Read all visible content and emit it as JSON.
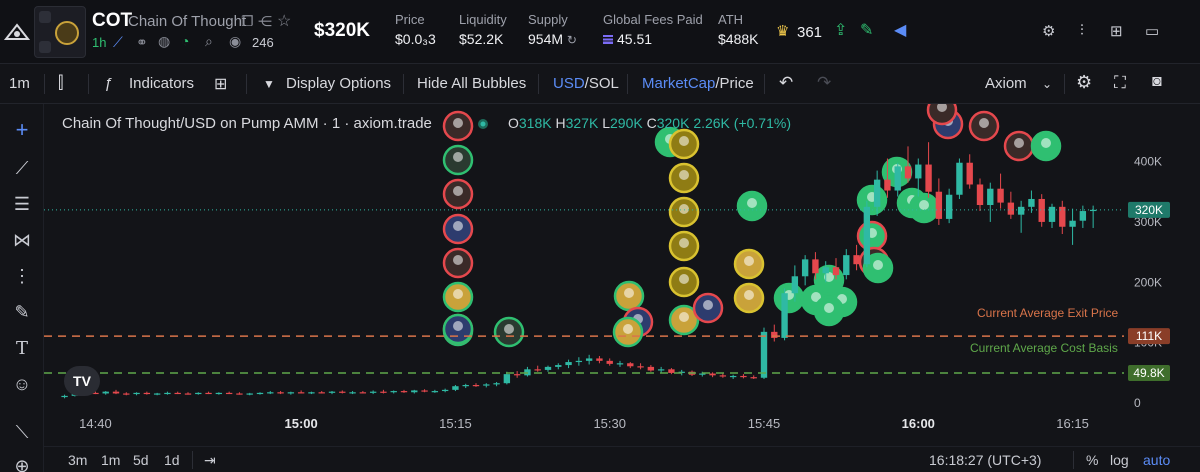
{
  "header": {
    "symbol": "COT",
    "name": "Chain Of Thought",
    "age": "1h",
    "holders_count": "246",
    "market_cap": "$320K",
    "stats": [
      {
        "label": "Price",
        "value": "$0.0₃3"
      },
      {
        "label": "Liquidity",
        "value": "$52.2K"
      },
      {
        "label": "Supply",
        "value": "954M"
      },
      {
        "label": "Global Fees Paid",
        "value": "45.51"
      },
      {
        "label": "ATH",
        "value": "$488K"
      }
    ],
    "crown_count": "361"
  },
  "toolbar": {
    "interval": "1m",
    "indicators": "Indicators",
    "display_options": "Display Options",
    "hide_bubbles": "Hide All Bubbles",
    "currency_a": "USD",
    "currency_b": "/SOL",
    "metric_a": "MarketCap",
    "metric_b": "/Price",
    "source": "Axiom"
  },
  "legend": {
    "title": "Chain Of Thought/USD on Pump AMM · 1 · axiom.trade",
    "o_label": "O",
    "o": "318K",
    "h_label": "H",
    "h": "327K",
    "l_label": "L",
    "l": "290K",
    "c_label": "C",
    "c": "320K",
    "change": "2.26K (+0.71%)"
  },
  "lines": {
    "exit_label": "Current Average Exit Price",
    "cost_label": "Current Average Cost Basis"
  },
  "bottom": {
    "ranges": [
      "3m",
      "1m",
      "5d",
      "1d"
    ],
    "clock": "16:18:27 (UTC+3)",
    "pct": "%",
    "log": "log",
    "auto": "auto"
  },
  "colors": {
    "up": "#2fb9a4",
    "down": "#e5484d",
    "exit_line": "#d9744a",
    "cost_line": "#5fa84a",
    "accent": "#5b8cf6"
  },
  "chart_data": {
    "type": "candlestick",
    "title": "Chain Of Thought/USD on Pump AMM · 1 · axiom.trade",
    "x_ticks": [
      "14:40",
      "15:00",
      "15:15",
      "15:30",
      "15:45",
      "16:00",
      "16:15"
    ],
    "x_range": [
      "14:35",
      "16:20"
    ],
    "y_ticks": [
      0,
      100000,
      200000,
      300000,
      400000
    ],
    "y_tick_labels": [
      "0",
      "100K",
      "200K",
      "300K",
      "400K"
    ],
    "y_range": [
      -18000,
      482000
    ],
    "last_value": 320000,
    "last_value_label": "320K",
    "exit_price": 111000,
    "exit_price_label": "111K",
    "cost_basis": 49800,
    "cost_basis_label": "49.8K",
    "grid": false,
    "candles": [
      {
        "t": "14:37",
        "o": 10000,
        "h": 14000,
        "l": 8000,
        "c": 12000
      },
      {
        "t": "14:38",
        "o": 12000,
        "h": 16000,
        "l": 11000,
        "c": 15000
      },
      {
        "t": "14:39",
        "o": 15000,
        "h": 19000,
        "l": 14000,
        "c": 17000
      },
      {
        "t": "14:40",
        "o": 17000,
        "h": 21000,
        "l": 15000,
        "c": 16000
      },
      {
        "t": "14:41",
        "o": 16000,
        "h": 20000,
        "l": 14000,
        "c": 19000
      },
      {
        "t": "14:42",
        "o": 19000,
        "h": 22000,
        "l": 15000,
        "c": 16000
      },
      {
        "t": "14:43",
        "o": 16000,
        "h": 18000,
        "l": 13000,
        "c": 15000
      },
      {
        "t": "14:44",
        "o": 15000,
        "h": 18000,
        "l": 13000,
        "c": 17000
      },
      {
        "t": "14:45",
        "o": 17000,
        "h": 19000,
        "l": 14000,
        "c": 15000
      },
      {
        "t": "14:46",
        "o": 15000,
        "h": 17000,
        "l": 13000,
        "c": 16000
      },
      {
        "t": "14:47",
        "o": 16000,
        "h": 19000,
        "l": 14000,
        "c": 17000
      },
      {
        "t": "14:48",
        "o": 17000,
        "h": 19000,
        "l": 15000,
        "c": 16000
      },
      {
        "t": "14:49",
        "o": 16000,
        "h": 18000,
        "l": 14000,
        "c": 15000
      },
      {
        "t": "14:50",
        "o": 15000,
        "h": 18000,
        "l": 14000,
        "c": 17000
      },
      {
        "t": "14:51",
        "o": 17000,
        "h": 19000,
        "l": 15000,
        "c": 16000
      },
      {
        "t": "14:52",
        "o": 16000,
        "h": 18000,
        "l": 14000,
        "c": 17000
      },
      {
        "t": "14:53",
        "o": 17000,
        "h": 19000,
        "l": 15000,
        "c": 16000
      },
      {
        "t": "14:54",
        "o": 16000,
        "h": 18000,
        "l": 14000,
        "c": 15000
      },
      {
        "t": "14:55",
        "o": 15000,
        "h": 17000,
        "l": 13000,
        "c": 16000
      },
      {
        "t": "14:56",
        "o": 16000,
        "h": 18000,
        "l": 14000,
        "c": 17000
      },
      {
        "t": "14:57",
        "o": 17000,
        "h": 20000,
        "l": 15000,
        "c": 18000
      },
      {
        "t": "14:58",
        "o": 18000,
        "h": 20000,
        "l": 15000,
        "c": 16000
      },
      {
        "t": "14:59",
        "o": 16000,
        "h": 19000,
        "l": 14000,
        "c": 18000
      },
      {
        "t": "15:00",
        "o": 18000,
        "h": 21000,
        "l": 16000,
        "c": 17000
      },
      {
        "t": "15:01",
        "o": 17000,
        "h": 19000,
        "l": 15000,
        "c": 18000
      },
      {
        "t": "15:02",
        "o": 18000,
        "h": 20000,
        "l": 16000,
        "c": 17000
      },
      {
        "t": "15:03",
        "o": 17000,
        "h": 20000,
        "l": 15000,
        "c": 19000
      },
      {
        "t": "15:04",
        "o": 19000,
        "h": 21000,
        "l": 16000,
        "c": 17000
      },
      {
        "t": "15:05",
        "o": 17000,
        "h": 20000,
        "l": 15000,
        "c": 18000
      },
      {
        "t": "15:06",
        "o": 18000,
        "h": 20000,
        "l": 16000,
        "c": 17000
      },
      {
        "t": "15:07",
        "o": 17000,
        "h": 21000,
        "l": 15000,
        "c": 19000
      },
      {
        "t": "15:08",
        "o": 19000,
        "h": 22000,
        "l": 16000,
        "c": 18000
      },
      {
        "t": "15:09",
        "o": 18000,
        "h": 21000,
        "l": 16000,
        "c": 20000
      },
      {
        "t": "15:10",
        "o": 20000,
        "h": 22000,
        "l": 17000,
        "c": 18000
      },
      {
        "t": "15:11",
        "o": 18000,
        "h": 22000,
        "l": 16000,
        "c": 21000
      },
      {
        "t": "15:12",
        "o": 21000,
        "h": 23000,
        "l": 18000,
        "c": 19000
      },
      {
        "t": "15:13",
        "o": 19000,
        "h": 22000,
        "l": 17000,
        "c": 20000
      },
      {
        "t": "15:14",
        "o": 20000,
        "h": 24000,
        "l": 18000,
        "c": 22000
      },
      {
        "t": "15:15",
        "o": 22000,
        "h": 30000,
        "l": 20000,
        "c": 28000
      },
      {
        "t": "15:16",
        "o": 28000,
        "h": 32000,
        "l": 25000,
        "c": 30000
      },
      {
        "t": "15:17",
        "o": 30000,
        "h": 33000,
        "l": 27000,
        "c": 29000
      },
      {
        "t": "15:18",
        "o": 29000,
        "h": 33000,
        "l": 26000,
        "c": 31000
      },
      {
        "t": "15:19",
        "o": 31000,
        "h": 35000,
        "l": 28000,
        "c": 33000
      },
      {
        "t": "15:20",
        "o": 33000,
        "h": 52000,
        "l": 31000,
        "c": 48000
      },
      {
        "t": "15:21",
        "o": 48000,
        "h": 53000,
        "l": 42000,
        "c": 46000
      },
      {
        "t": "15:22",
        "o": 46000,
        "h": 60000,
        "l": 44000,
        "c": 56000
      },
      {
        "t": "15:23",
        "o": 56000,
        "h": 62000,
        "l": 52000,
        "c": 55000
      },
      {
        "t": "15:24",
        "o": 55000,
        "h": 62000,
        "l": 52000,
        "c": 60000
      },
      {
        "t": "15:25",
        "o": 60000,
        "h": 66000,
        "l": 56000,
        "c": 63000
      },
      {
        "t": "15:26",
        "o": 63000,
        "h": 72000,
        "l": 58000,
        "c": 68000
      },
      {
        "t": "15:27",
        "o": 68000,
        "h": 76000,
        "l": 62000,
        "c": 70000
      },
      {
        "t": "15:28",
        "o": 70000,
        "h": 80000,
        "l": 64000,
        "c": 74000
      },
      {
        "t": "15:29",
        "o": 74000,
        "h": 78000,
        "l": 66000,
        "c": 70000
      },
      {
        "t": "15:30",
        "o": 70000,
        "h": 74000,
        "l": 62000,
        "c": 65000
      },
      {
        "t": "15:31",
        "o": 65000,
        "h": 70000,
        "l": 60000,
        "c": 66000
      },
      {
        "t": "15:32",
        "o": 66000,
        "h": 68000,
        "l": 58000,
        "c": 61000
      },
      {
        "t": "15:33",
        "o": 61000,
        "h": 66000,
        "l": 56000,
        "c": 60000
      },
      {
        "t": "15:34",
        "o": 60000,
        "h": 63000,
        "l": 52000,
        "c": 54000
      },
      {
        "t": "15:35",
        "o": 54000,
        "h": 60000,
        "l": 50000,
        "c": 56000
      },
      {
        "t": "15:36",
        "o": 56000,
        "h": 58000,
        "l": 48000,
        "c": 50000
      },
      {
        "t": "15:37",
        "o": 50000,
        "h": 55000,
        "l": 46000,
        "c": 52000
      },
      {
        "t": "15:38",
        "o": 52000,
        "h": 54000,
        "l": 45000,
        "c": 47000
      },
      {
        "t": "15:39",
        "o": 47000,
        "h": 52000,
        "l": 44000,
        "c": 49000
      },
      {
        "t": "15:40",
        "o": 49000,
        "h": 51000,
        "l": 43000,
        "c": 46000
      },
      {
        "t": "15:41",
        "o": 46000,
        "h": 50000,
        "l": 42000,
        "c": 44000
      },
      {
        "t": "15:42",
        "o": 44000,
        "h": 47000,
        "l": 40000,
        "c": 45000
      },
      {
        "t": "15:43",
        "o": 45000,
        "h": 48000,
        "l": 41000,
        "c": 43000
      },
      {
        "t": "15:44",
        "o": 43000,
        "h": 46000,
        "l": 40000,
        "c": 42000
      },
      {
        "t": "15:45",
        "o": 42000,
        "h": 125000,
        "l": 40000,
        "c": 118000
      },
      {
        "t": "15:46",
        "o": 118000,
        "h": 130000,
        "l": 102000,
        "c": 108000
      },
      {
        "t": "15:47",
        "o": 108000,
        "h": 190000,
        "l": 104000,
        "c": 182000
      },
      {
        "t": "15:48",
        "o": 182000,
        "h": 228000,
        "l": 168000,
        "c": 210000
      },
      {
        "t": "15:49",
        "o": 210000,
        "h": 245000,
        "l": 195000,
        "c": 238000
      },
      {
        "t": "15:50",
        "o": 238000,
        "h": 250000,
        "l": 205000,
        "c": 215000
      },
      {
        "t": "15:51",
        "o": 215000,
        "h": 235000,
        "l": 200000,
        "c": 225000
      },
      {
        "t": "15:52",
        "o": 225000,
        "h": 240000,
        "l": 205000,
        "c": 212000
      },
      {
        "t": "15:53",
        "o": 212000,
        "h": 255000,
        "l": 205000,
        "c": 245000
      },
      {
        "t": "15:54",
        "o": 245000,
        "h": 262000,
        "l": 220000,
        "c": 230000
      },
      {
        "t": "15:55",
        "o": 230000,
        "h": 335000,
        "l": 225000,
        "c": 325000
      },
      {
        "t": "15:56",
        "o": 325000,
        "h": 385000,
        "l": 310000,
        "c": 370000
      },
      {
        "t": "15:57",
        "o": 370000,
        "h": 405000,
        "l": 340000,
        "c": 352000
      },
      {
        "t": "15:58",
        "o": 352000,
        "h": 398000,
        "l": 342000,
        "c": 392000
      },
      {
        "t": "15:59",
        "o": 392000,
        "h": 425000,
        "l": 365000,
        "c": 372000
      },
      {
        "t": "16:00",
        "o": 372000,
        "h": 405000,
        "l": 342000,
        "c": 395000
      },
      {
        "t": "16:01",
        "o": 395000,
        "h": 432000,
        "l": 340000,
        "c": 350000
      },
      {
        "t": "16:02",
        "o": 350000,
        "h": 372000,
        "l": 295000,
        "c": 305000
      },
      {
        "t": "16:03",
        "o": 305000,
        "h": 355000,
        "l": 298000,
        "c": 345000
      },
      {
        "t": "16:04",
        "o": 345000,
        "h": 405000,
        "l": 338000,
        "c": 398000
      },
      {
        "t": "16:05",
        "o": 398000,
        "h": 412000,
        "l": 355000,
        "c": 362000
      },
      {
        "t": "16:06",
        "o": 362000,
        "h": 372000,
        "l": 318000,
        "c": 328000
      },
      {
        "t": "16:07",
        "o": 328000,
        "h": 365000,
        "l": 300000,
        "c": 355000
      },
      {
        "t": "16:08",
        "o": 355000,
        "h": 380000,
        "l": 322000,
        "c": 332000
      },
      {
        "t": "16:09",
        "o": 332000,
        "h": 350000,
        "l": 305000,
        "c": 312000
      },
      {
        "t": "16:10",
        "o": 312000,
        "h": 335000,
        "l": 282000,
        "c": 325000
      },
      {
        "t": "16:11",
        "o": 325000,
        "h": 352000,
        "l": 315000,
        "c": 338000
      },
      {
        "t": "16:12",
        "o": 338000,
        "h": 346000,
        "l": 292000,
        "c": 300000
      },
      {
        "t": "16:13",
        "o": 300000,
        "h": 330000,
        "l": 290000,
        "c": 325000
      },
      {
        "t": "16:14",
        "o": 325000,
        "h": 335000,
        "l": 280000,
        "c": 292000
      },
      {
        "t": "16:15",
        "o": 292000,
        "h": 322000,
        "l": 262000,
        "c": 302000
      },
      {
        "t": "16:16",
        "o": 302000,
        "h": 327000,
        "l": 290000,
        "c": 318000
      },
      {
        "t": "16:17",
        "o": 318000,
        "h": 327000,
        "l": 290000,
        "c": 320000
      }
    ]
  }
}
